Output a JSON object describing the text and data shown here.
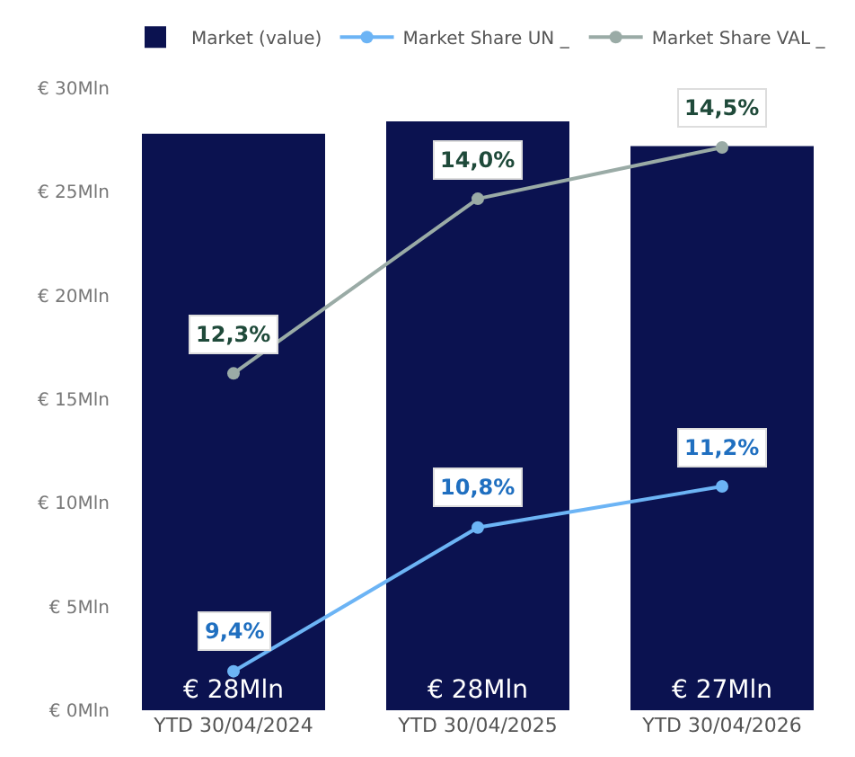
{
  "chart_data": {
    "type": "bar",
    "categories": [
      "YTD 30/04/2024",
      "YTD 30/04/2025",
      "YTD 30/04/2026"
    ],
    "series": [
      {
        "name": "Market (value)",
        "color": "#0b1250",
        "values": [
          27.8,
          28.4,
          27.2
        ],
        "value_labels": [
          "€ 28Mln",
          "€ 28Mln",
          "€ 27Mln"
        ]
      },
      {
        "name": "Market Share UN _",
        "type": "line",
        "axis": "y2",
        "color": "#6cb4f5",
        "values": [
          9.4,
          10.8,
          11.2
        ],
        "value_labels": [
          "9,4%",
          "10,8%",
          "11,2%"
        ]
      },
      {
        "name": "Market Share VAL _",
        "type": "line",
        "axis": "y2",
        "color": "#9aaba6",
        "values": [
          12.3,
          14.0,
          14.5
        ],
        "value_labels": [
          "12,3%",
          "14,0%",
          "14,5%"
        ]
      }
    ],
    "ylim": [
      0,
      30
    ],
    "yticks": [
      {
        "value": 0,
        "label": "€ 0Mln"
      },
      {
        "value": 5,
        "label": "€ 5Mln"
      },
      {
        "value": 10,
        "label": "€ 10Mln"
      },
      {
        "value": 15,
        "label": "€ 15Mln"
      },
      {
        "value": 20,
        "label": "€ 20Mln"
      },
      {
        "value": 25,
        "label": "€ 25Mln"
      },
      {
        "value": 30,
        "label": "€ 30Mln"
      }
    ],
    "grid": false,
    "legend": "top",
    "marker": "circle",
    "line_style": "solid"
  }
}
